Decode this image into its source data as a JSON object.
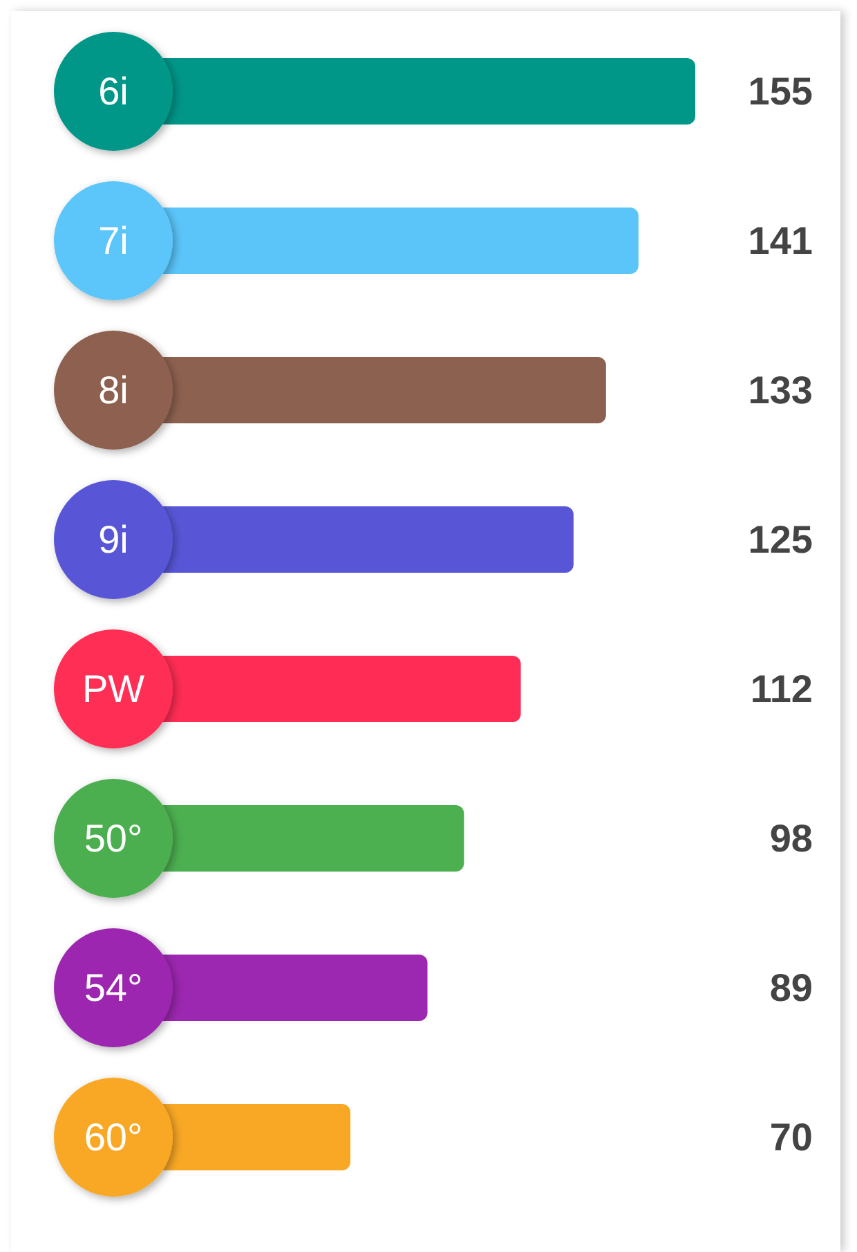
{
  "chart_data": {
    "type": "bar",
    "orientation": "horizontal",
    "categories": [
      "6i",
      "7i",
      "8i",
      "9i",
      "PW",
      "50°",
      "54°",
      "60°"
    ],
    "values": [
      155,
      141,
      133,
      125,
      112,
      98,
      89,
      70
    ],
    "colors": [
      "#009688",
      "#5bc5fa",
      "#8d6150",
      "#5856d6",
      "#ff2d55",
      "#4caf50",
      "#9c27b0",
      "#f9a825"
    ],
    "data_labels": true
  }
}
